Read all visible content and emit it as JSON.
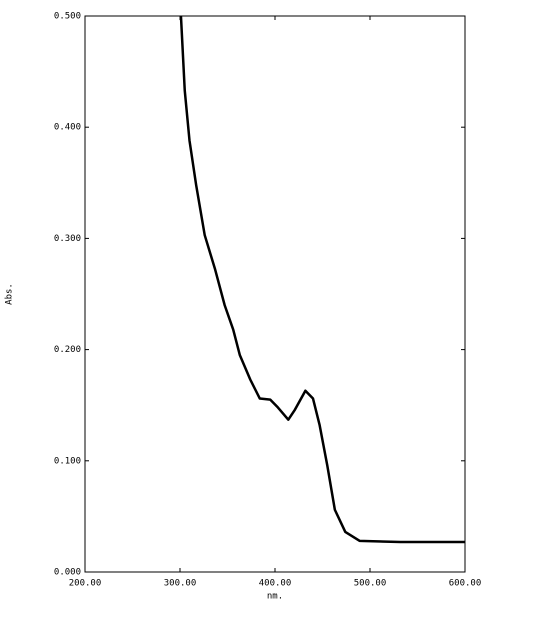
{
  "chart_data": {
    "type": "line",
    "x_label": "nm.",
    "y_label": "Abs.",
    "x": [
      301,
      305,
      310,
      317,
      326,
      337,
      347,
      356,
      363,
      374,
      384,
      395,
      403,
      414,
      421,
      432,
      440,
      447,
      455,
      463,
      474,
      489,
      532,
      600
    ],
    "series": [
      {
        "name": "Abs.",
        "color": "#000000",
        "values": [
          0.5,
          0.433,
          0.388,
          0.348,
          0.303,
          0.272,
          0.24,
          0.218,
          0.195,
          0.173,
          0.156,
          0.155,
          0.148,
          0.137,
          0.146,
          0.163,
          0.156,
          0.132,
          0.096,
          0.056,
          0.036,
          0.028,
          0.027,
          0.027
        ]
      }
    ],
    "xlim": [
      200,
      600
    ],
    "xticks": [
      {
        "value": 200,
        "label": "200.00"
      },
      {
        "value": 300,
        "label": "300.00"
      },
      {
        "value": 400,
        "label": "400.00"
      },
      {
        "value": 500,
        "label": "500.00"
      },
      {
        "value": 600,
        "label": "600.00"
      }
    ],
    "ylim": [
      0,
      0.5
    ],
    "yticks": [
      {
        "value": 0,
        "label": "0.000"
      },
      {
        "value": 0.1,
        "label": "0.100"
      },
      {
        "value": 0.2,
        "label": "0.200"
      },
      {
        "value": 0.3,
        "label": "0.300"
      },
      {
        "value": 0.4,
        "label": "0.400"
      },
      {
        "value": 0.5,
        "label": "0.500"
      }
    ]
  }
}
